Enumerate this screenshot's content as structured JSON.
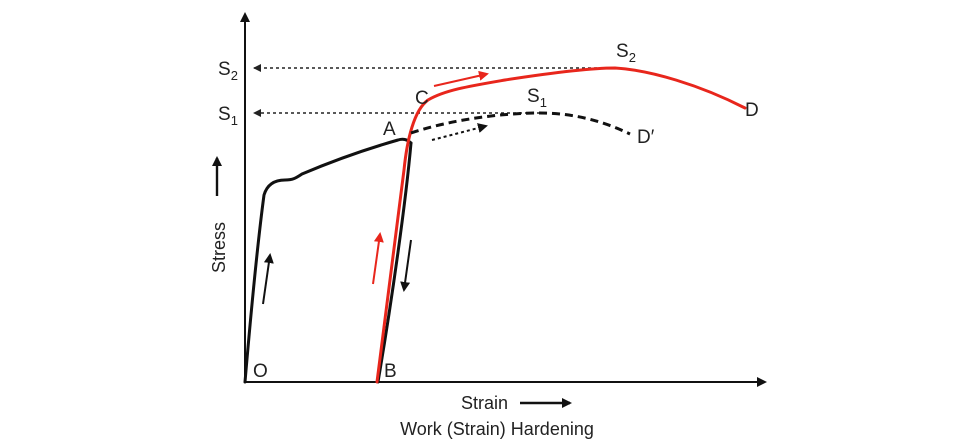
{
  "caption": "Work (Strain) Hardening",
  "axes": {
    "x_label": "Strain",
    "y_label": "Stress"
  },
  "y_ticks": [
    {
      "letter": "S",
      "subscript": "2"
    },
    {
      "letter": "S",
      "subscript": "1"
    }
  ],
  "points": {
    "origin": "O",
    "yield_end": "A",
    "unload_end": "B",
    "reload": "C",
    "fracture": "D",
    "fracture_prime": "D′",
    "peak1": {
      "letter": "S",
      "subscript": "1"
    },
    "peak2": {
      "letter": "S",
      "subscript": "2"
    }
  },
  "colors": {
    "initial_curve": "#111111",
    "reload_curve": "#e8261c",
    "guide_lines": "#222222"
  },
  "icons": {
    "arrow_up": "arrow-up-icon",
    "arrow_down": "arrow-down-icon",
    "arrow_right": "arrow-right-icon"
  }
}
